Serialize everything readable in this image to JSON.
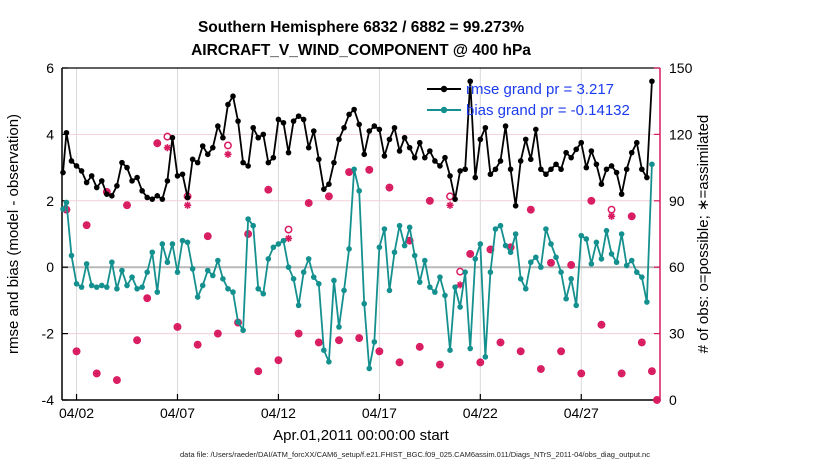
{
  "title": {
    "line1": "Southern Hemisphere 6832 / 6882 = 99.273%",
    "line2": "AIRCRAFT_V_WIND_COMPONENT @ 400 hPa"
  },
  "legend": {
    "items": [
      {
        "label": "rmse grand pr = 3.217",
        "series": "rmse"
      },
      {
        "label": "bias grand pr = -0.14132",
        "series": "bias"
      }
    ]
  },
  "axes": {
    "left": {
      "label": "rmse and bias (model - observation)",
      "ticks": [
        -4,
        -2,
        0,
        2,
        4,
        6
      ],
      "range": [
        -4,
        6
      ]
    },
    "right": {
      "label": "# of obs: o=possible; ∗=assimilated",
      "ticks": [
        0,
        30,
        60,
        90,
        120,
        150
      ],
      "range": [
        0,
        150
      ]
    },
    "x": {
      "label": "Apr.01,2011 00:00:00 start",
      "tick_days": [
        2,
        7,
        12,
        17,
        22,
        27
      ],
      "tick_labels": [
        "04/02",
        "04/07",
        "04/12",
        "04/17",
        "04/22",
        "04/27"
      ],
      "range_days": [
        1.28,
        30.9
      ]
    }
  },
  "footer": "data file: /Users/raeder/DAI/ATM_forcXX/CAM6_setup/f.e21.FHIST_BGC.f09_025.CAM6assim.011/Diags_NTrS_2011-04/obs_diag_output.nc",
  "colors": {
    "rmse": "#000000",
    "bias": "#14908F",
    "obs": "#D81B60",
    "legend_text": "#1B3BEF",
    "grid_h": "#F3CFDA",
    "grid_v": "#DADADA",
    "zero_line": "#B9B9B9"
  },
  "chart_data": {
    "type": "line",
    "day_start": 1.25,
    "day_step": 0.25,
    "ylim_left": [
      -4,
      6
    ],
    "ylim_right": [
      0,
      150
    ],
    "grid": true,
    "legend_position": "top-right-inside",
    "series": [
      {
        "name": "rmse",
        "color_key": "rmse",
        "grand_value": 3.217,
        "values": [
          2.85,
          4.05,
          3.2,
          3.05,
          2.9,
          2.55,
          2.75,
          2.4,
          2.6,
          2.2,
          2.15,
          2.45,
          3.15,
          3.0,
          2.6,
          2.7,
          2.3,
          2.1,
          2.05,
          2.15,
          2.05,
          2.6,
          3.9,
          2.75,
          2.8,
          2.1,
          3.25,
          3.15,
          3.65,
          3.4,
          3.6,
          4.25,
          3.9,
          4.9,
          5.15,
          4.4,
          3.15,
          3.05,
          4.2,
          3.9,
          4.0,
          3.15,
          3.3,
          4.45,
          4.35,
          3.45,
          4.4,
          4.55,
          4.45,
          3.6,
          4.1,
          3.25,
          2.35,
          2.5,
          3.15,
          3.85,
          4.2,
          4.6,
          4.75,
          4.3,
          3.4,
          4.1,
          4.25,
          4.15,
          3.35,
          3.85,
          4.2,
          3.5,
          3.9,
          3.6,
          3.3,
          3.75,
          3.3,
          3.5,
          3.2,
          3.05,
          3.3,
          2.75,
          2.05,
          2.9,
          2.95,
          5.6,
          2.7,
          3.85,
          4.2,
          2.8,
          2.95,
          3.2,
          4.25,
          2.95,
          1.85,
          3.2,
          3.85,
          3.25,
          4.15,
          2.95,
          2.8,
          2.95,
          3.1,
          2.95,
          3.45,
          3.3,
          3.55,
          3.75,
          3.0,
          3.5,
          3.1,
          2.5,
          2.95,
          3.05,
          2.85,
          2.2,
          2.95,
          3.45,
          3.75,
          2.95,
          2.7,
          5.6
        ]
      },
      {
        "name": "bias",
        "color_key": "bias",
        "grand_value": -0.14132,
        "values": [
          1.75,
          1.95,
          0.35,
          -0.5,
          -0.6,
          0.1,
          -0.55,
          -0.6,
          -0.55,
          -0.6,
          0.15,
          -0.65,
          -0.1,
          -0.55,
          -0.3,
          -0.65,
          -0.6,
          -0.15,
          0.45,
          -0.75,
          0.7,
          0.15,
          0.7,
          -0.15,
          0.8,
          0.75,
          -0.05,
          -0.9,
          -0.55,
          -0.1,
          -0.25,
          0.2,
          -0.35,
          -0.65,
          -0.75,
          -1.65,
          -1.9,
          1.45,
          1.25,
          -0.65,
          -0.8,
          0.25,
          0.6,
          0.7,
          0.8,
          0.0,
          -0.35,
          -1.15,
          -0.15,
          0.25,
          -0.3,
          -0.5,
          -2.5,
          -2.85,
          -0.4,
          -1.8,
          -0.7,
          0.55,
          2.95,
          2.3,
          -1.1,
          -3.05,
          -2.25,
          0.6,
          1.15,
          -0.7,
          0.45,
          1.25,
          0.65,
          1.2,
          0.35,
          -0.45,
          0.2,
          -0.6,
          -0.75,
          -0.3,
          -0.85,
          -2.5,
          -0.6,
          -1.2,
          -0.15,
          -2.45,
          0.25,
          0.7,
          -2.7,
          -0.15,
          1.15,
          1.25,
          0.65,
          0.45,
          1.0,
          -0.35,
          -0.65,
          0.15,
          0.3,
          0.0,
          1.15,
          0.7,
          0.3,
          -0.15,
          -0.95,
          -0.35,
          -1.15,
          0.95,
          0.85,
          0.1,
          0.75,
          0.25,
          1.1,
          0.4,
          0.15,
          1.0,
          0.05,
          0.2,
          -0.15,
          -0.3,
          -1.05,
          3.1
        ]
      }
    ],
    "obs_counts": {
      "marker_possible": "open-circle",
      "marker_assimilated": "asterisk",
      "times_days": [
        1.5,
        2,
        2.5,
        3,
        3.5,
        4,
        4.5,
        5,
        5.5,
        6,
        6.5,
        7,
        7.5,
        8,
        8.5,
        9,
        9.5,
        10,
        10.5,
        11,
        11.5,
        12,
        12.5,
        13,
        13.5,
        14,
        14.5,
        15,
        15.5,
        16,
        16.5,
        17,
        17.5,
        18,
        18.5,
        19,
        19.5,
        20,
        20.5,
        21,
        21.5,
        22,
        22.5,
        23,
        23.5,
        24,
        24.5,
        25,
        25.5,
        26,
        26.5,
        27,
        27.5,
        28,
        28.5,
        29,
        29.5,
        30,
        30.5,
        30.75
      ],
      "possible": [
        86,
        22,
        79,
        12,
        94,
        9,
        88,
        27,
        46,
        116,
        119,
        33,
        92,
        25,
        74,
        30,
        115,
        35,
        75,
        13,
        95,
        18,
        77,
        30,
        89,
        26,
        92,
        27,
        103,
        28,
        104,
        22,
        96,
        17,
        72,
        24,
        90,
        16,
        92,
        58,
        66,
        17,
        68,
        26,
        69,
        22,
        86,
        14,
        62,
        22,
        61,
        12,
        90,
        34,
        86,
        12,
        83,
        26,
        13,
        0
      ],
      "assimilated": [
        86,
        22,
        79,
        12,
        94,
        9,
        88,
        27,
        46,
        116,
        114,
        33,
        88,
        25,
        74,
        30,
        111,
        35,
        75,
        13,
        95,
        18,
        73,
        30,
        89,
        26,
        92,
        27,
        103,
        28,
        104,
        22,
        96,
        17,
        72,
        24,
        90,
        16,
        88,
        52,
        66,
        17,
        68,
        26,
        69,
        22,
        86,
        14,
        62,
        22,
        61,
        12,
        90,
        34,
        83,
        12,
        83,
        26,
        13,
        0
      ]
    }
  }
}
